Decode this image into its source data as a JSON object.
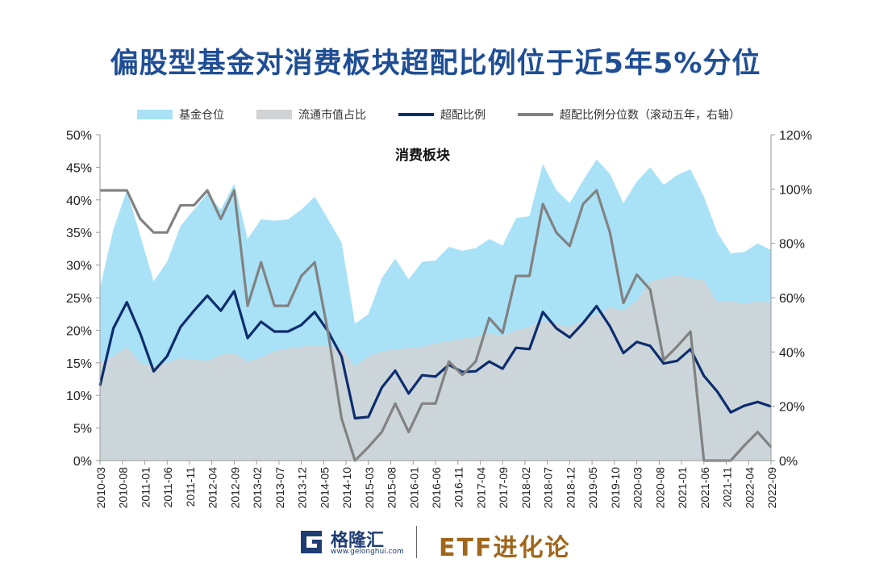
{
  "title": "偏股型基金对消费板块超配比例位于近5年5%分位",
  "legend": [
    {
      "label": "基金仓位",
      "color": "#a9e2f7",
      "kind": "area"
    },
    {
      "label": "流通市值占比",
      "color": "#d2d3d5",
      "kind": "area"
    },
    {
      "label": "超配比例",
      "color": "#0d2d6e",
      "kind": "line"
    },
    {
      "label": "超配比例分位数（滚动五年，右轴）",
      "color": "#828282",
      "kind": "line"
    }
  ],
  "footer": {
    "logo_name": "格隆汇",
    "logo_url": "www.gelonghui.com",
    "brand": "ETF进化论"
  },
  "chart_data": {
    "type": "area",
    "annotation": "消费板块",
    "left_axis": {
      "min": 0,
      "max": 50,
      "ticks": [
        "0%",
        "5%",
        "10%",
        "15%",
        "20%",
        "25%",
        "30%",
        "35%",
        "40%",
        "45%",
        "50%"
      ]
    },
    "right_axis": {
      "min": 0,
      "max": 120,
      "ticks": [
        "0%",
        "20%",
        "40%",
        "60%",
        "80%",
        "100%",
        "120%"
      ]
    },
    "x_tick_labels": [
      "2010-03",
      "2010-08",
      "2011-01",
      "2011-06",
      "2011-11",
      "2012-04",
      "2012-09",
      "2013-02",
      "2013-07",
      "2013-12",
      "2014-05",
      "2014-10",
      "2015-03",
      "2015-08",
      "2016-01",
      "2016-06",
      "2016-11",
      "2017-04",
      "2017-09",
      "2018-02",
      "2018-07",
      "2018-12",
      "2019-05",
      "2019-10",
      "2020-03",
      "2020-08",
      "2021-01",
      "2021-06",
      "2021-11",
      "2022-04",
      "2022-09"
    ],
    "series": [
      {
        "name": "基金仓位",
        "axis": "left",
        "values": [
          26.5,
          35.5,
          41.5,
          34.5,
          27.5,
          30.5,
          36,
          38.5,
          41,
          38.5,
          42.5,
          34,
          37,
          36.8,
          37,
          38.5,
          40.5,
          37,
          33.5,
          21,
          22.5,
          28,
          31,
          27.8,
          30.5,
          30.7,
          32.8,
          32.2,
          32.6,
          34,
          33,
          37.2,
          37.5,
          45.5,
          41.5,
          39.5,
          43,
          46.2,
          44,
          39.5,
          42.8,
          45,
          42.3,
          43.8,
          44.7,
          40.5,
          35,
          31.8,
          32,
          33.3,
          32.3
        ]
      },
      {
        "name": "流通市值占比",
        "axis": "left",
        "values": [
          15,
          16,
          17.5,
          15,
          14.5,
          15,
          15.7,
          15.5,
          15.3,
          16.2,
          16.5,
          15.2,
          15.8,
          16.8,
          17.2,
          17.5,
          17.7,
          17.5,
          17.2,
          14.5,
          16,
          16.8,
          17,
          17.3,
          17.5,
          18,
          18.3,
          18.7,
          19,
          19.5,
          19.2,
          20,
          20.5,
          21.5,
          21,
          20.5,
          21.5,
          22.5,
          23.5,
          23,
          24.5,
          27.5,
          28,
          28.5,
          28,
          27.7,
          24.3,
          24.5,
          24,
          24.5,
          24.2
        ]
      },
      {
        "name": "超配比例",
        "axis": "left",
        "values": [
          11.5,
          20.3,
          24.3,
          19.5,
          13.7,
          16,
          20.5,
          23,
          25.3,
          23,
          26,
          18.8,
          21.3,
          19.8,
          19.8,
          20.8,
          22.8,
          19.8,
          16,
          6.5,
          6.7,
          11.2,
          13.8,
          10.3,
          13.1,
          12.9,
          14.7,
          13.6,
          13.7,
          15.2,
          14.1,
          17.3,
          17.1,
          22.8,
          20.3,
          18.9,
          21.1,
          23.7,
          20.6,
          16.5,
          18.2,
          17.6,
          14.9,
          15.3,
          17.1,
          13,
          10.6,
          7.4,
          8.4,
          9,
          8.3
        ]
      },
      {
        "name": "超配比例分位数（滚动五年，右轴）",
        "axis": "right",
        "values": [
          99.5,
          99.5,
          99.5,
          89,
          84,
          84,
          94,
          94,
          99.5,
          89,
          99.5,
          57,
          73,
          57,
          57,
          68,
          73,
          47,
          15.5,
          0,
          5,
          10.5,
          21,
          10.5,
          21,
          21,
          36.5,
          31.5,
          36.5,
          52.5,
          47,
          68,
          68,
          94.5,
          84,
          79,
          94.5,
          99.5,
          84,
          58,
          68.5,
          63,
          37,
          42,
          47.5,
          0,
          0,
          0,
          5.5,
          10.5,
          5
        ]
      }
    ]
  }
}
